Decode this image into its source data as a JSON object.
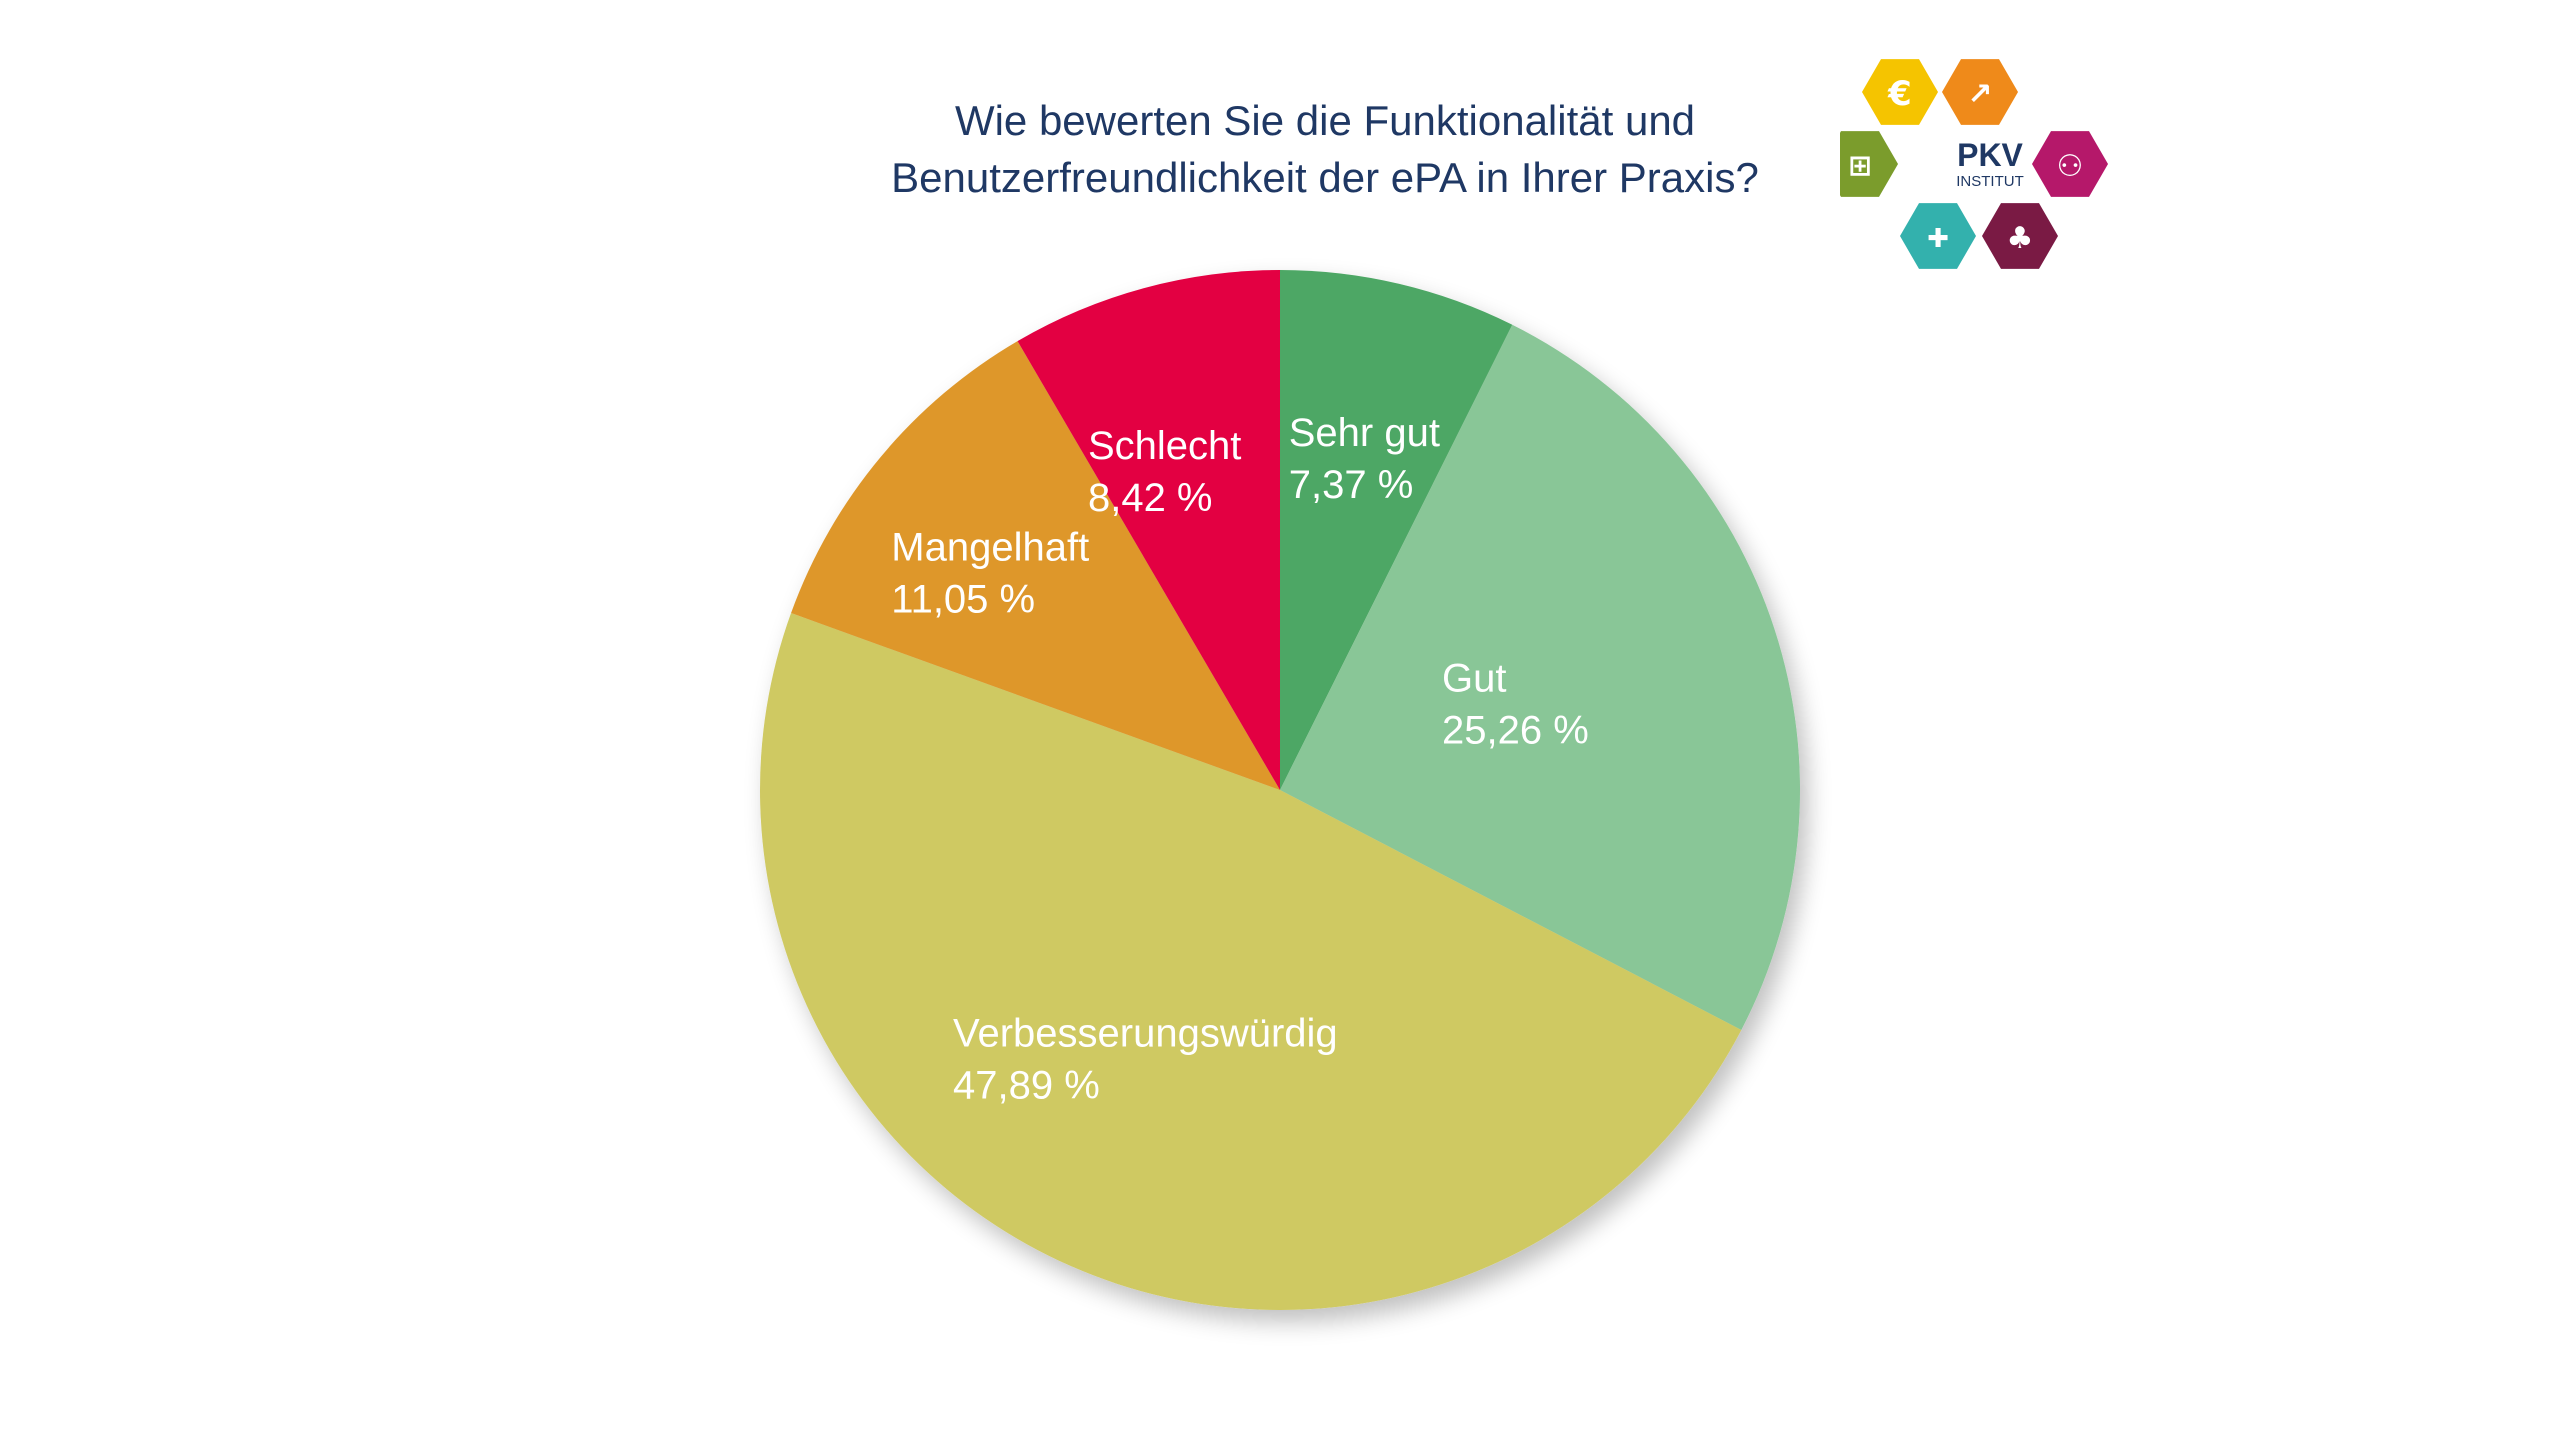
{
  "title_lines": [
    "Wie bewerten Sie die Funktionalität und",
    "Benutzerfreundlichkeit der ePA in Ihrer Praxis?"
  ],
  "logo": {
    "line1": "PKV",
    "line2": "INSTITUT",
    "icons": [
      "euro-icon",
      "growth-chart-icon",
      "puzzle-icon",
      "people-icon",
      "syringe-icon",
      "tree-icon"
    ],
    "colors": [
      "#f5c400",
      "#ef8a1a",
      "#7b9c2c",
      "#b5186a",
      "#33b1ad",
      "#7a1a44"
    ]
  },
  "chart_data": {
    "type": "pie",
    "title": "Wie bewerten Sie die Funktionalität und Benutzerfreundlichkeit der ePA in Ihrer Praxis?",
    "slices": [
      {
        "label": "Sehr gut",
        "value": 7.37,
        "value_text": "7,37  %",
        "color": "#4ea765"
      },
      {
        "label": "Gut",
        "value": 25.26,
        "value_text": "25,26  %",
        "color": "#89c697"
      },
      {
        "label": "Verbesserungswürdig",
        "value": 47.89,
        "value_text": "47,89  %",
        "color": "#cfc962"
      },
      {
        "label": "Mangelhaft",
        "value": 11.05,
        "value_text": "11,05  %",
        "color": "#de972c"
      },
      {
        "label": "Schlecht",
        "value": 8.42,
        "value_text": "8,42  %",
        "color": "#e30043"
      }
    ],
    "start": "top",
    "direction": "clockwise",
    "legend": "none"
  }
}
